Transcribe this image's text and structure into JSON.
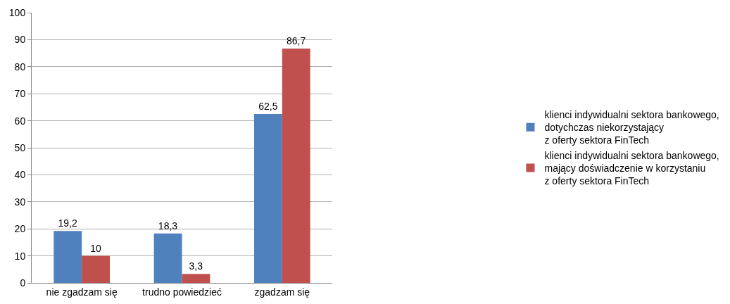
{
  "chart_data": {
    "type": "bar",
    "categories": [
      "nie zgadzam się",
      "trudno powiedzieć",
      "zgadzam się"
    ],
    "series": [
      {
        "name": "klienci indywidualni sektora bankowego,\ndotychczas niekorzystający\nz oferty sektora FinTech",
        "color": "#4f81bd",
        "values": [
          19.2,
          18.3,
          62.5
        ],
        "value_labels": [
          "19,2",
          "18,3",
          "62,5"
        ]
      },
      {
        "name": "klienci indywidualni sektora bankowego,\nmający doświadczenie w korzystaniu\nz oferty sektora FinTech",
        "color": "#c0504d",
        "values": [
          10,
          3.3,
          86.7
        ],
        "value_labels": [
          "10",
          "3,3",
          "86,7"
        ]
      }
    ],
    "ylim": [
      0,
      100
    ],
    "yticks": [
      0,
      10,
      20,
      30,
      40,
      50,
      60,
      70,
      80,
      90,
      100
    ],
    "grid": "y",
    "legend": "right"
  }
}
